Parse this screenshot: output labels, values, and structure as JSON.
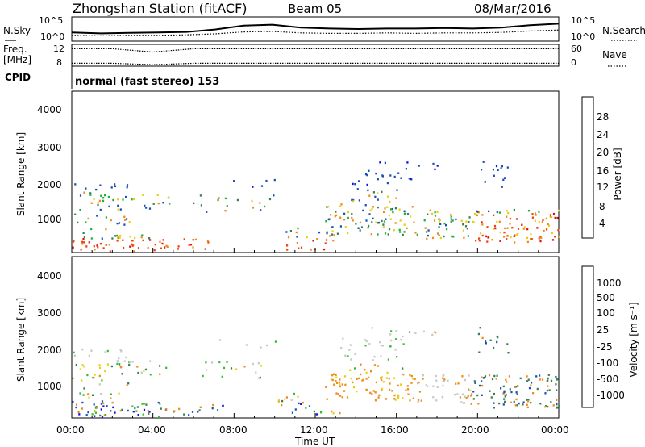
{
  "header": {
    "station": "Zhongshan Station (fitACF)",
    "beam": "Beam 05",
    "date": "08/Mar/2016"
  },
  "chart_data": [
    {
      "type": "line",
      "panel": "noise",
      "left_label": "N.Sky",
      "right_label": "N.Search",
      "left_ticks": [
        "10^5",
        "10^0"
      ],
      "right_ticks": [
        "10^5",
        "10^0"
      ],
      "series": [
        {
          "name": "N.Sky",
          "style": "solid",
          "values": [
            1.8,
            1.6,
            1.7,
            1.8,
            1.9,
            2.4,
            3.2,
            3.4,
            2.8,
            2.6,
            2.5,
            2.6,
            2.6,
            2.7,
            2.6,
            2.8,
            3.3,
            3.6
          ]
        },
        {
          "name": "N.Search",
          "style": "dotted",
          "values": [
            1.2,
            1.1,
            1.2,
            1.2,
            1.3,
            1.5,
            1.9,
            2.0,
            1.7,
            1.6,
            1.6,
            1.7,
            1.6,
            1.7,
            1.7,
            1.8,
            2.1,
            2.3
          ]
        }
      ]
    },
    {
      "type": "line",
      "panel": "frequency",
      "left_label": "Freq.",
      "left_unit": "[MHz]",
      "left_ticks": [
        "12",
        "8"
      ],
      "right_label": "Nave",
      "right_ticks": [
        "60",
        "0"
      ],
      "series": [
        {
          "name": "Freq.",
          "style": "dotted",
          "values": [
            11.2,
            11.2,
            10.6,
            11.2,
            11.2,
            11.2,
            11.2,
            11.2,
            11.2,
            11.2,
            11.2,
            11.2,
            11.2
          ]
        },
        {
          "name": "Nave",
          "style": "dotted",
          "values": [
            8,
            8,
            4,
            8,
            8,
            8,
            8,
            8,
            8,
            8,
            8,
            8,
            8
          ]
        }
      ]
    },
    {
      "type": "label",
      "panel": "cpid",
      "left_label": "CPID",
      "text": "normal (fast stereo) 153"
    },
    {
      "type": "heatmap",
      "panel": "power",
      "ylabel": "Slant Range [km]",
      "yticks": [
        "1000",
        "2000",
        "3000",
        "4000"
      ],
      "ylim": [
        200,
        4600
      ],
      "colorbar_label": "Power [dB]",
      "colorbar_ticks": [
        "4",
        "8",
        "12",
        "16",
        "20",
        "24",
        "28"
      ],
      "colorbar_colors": [
        "#1010e0",
        "#1a4fb8",
        "#3a7f52",
        "#1fb03a",
        "#e8d010",
        "#f08a18",
        "#f04010",
        "#e01010"
      ]
    },
    {
      "type": "heatmap",
      "panel": "velocity",
      "ylabel": "Slant Range [km]",
      "yticks": [
        "1000",
        "2000",
        "3000",
        "4000"
      ],
      "ylim": [
        200,
        4600
      ],
      "colorbar_label": "Velocity [m s⁻¹]",
      "colorbar_ticks": [
        "1000",
        "500",
        "100",
        "25",
        "-25",
        "-100",
        "-500",
        "-1000"
      ],
      "colorbar_colors": [
        "#1010e0",
        "#1a4fb8",
        "#3a7f52",
        "#30c030",
        "#c8c8c8",
        "#e8d010",
        "#f08a18",
        "#e01010"
      ]
    }
  ],
  "x_axis": {
    "label": "Time UT",
    "ticks": [
      "00:00",
      "04:00",
      "08:00",
      "12:00",
      "16:00",
      "20:00",
      "00:00"
    ]
  }
}
